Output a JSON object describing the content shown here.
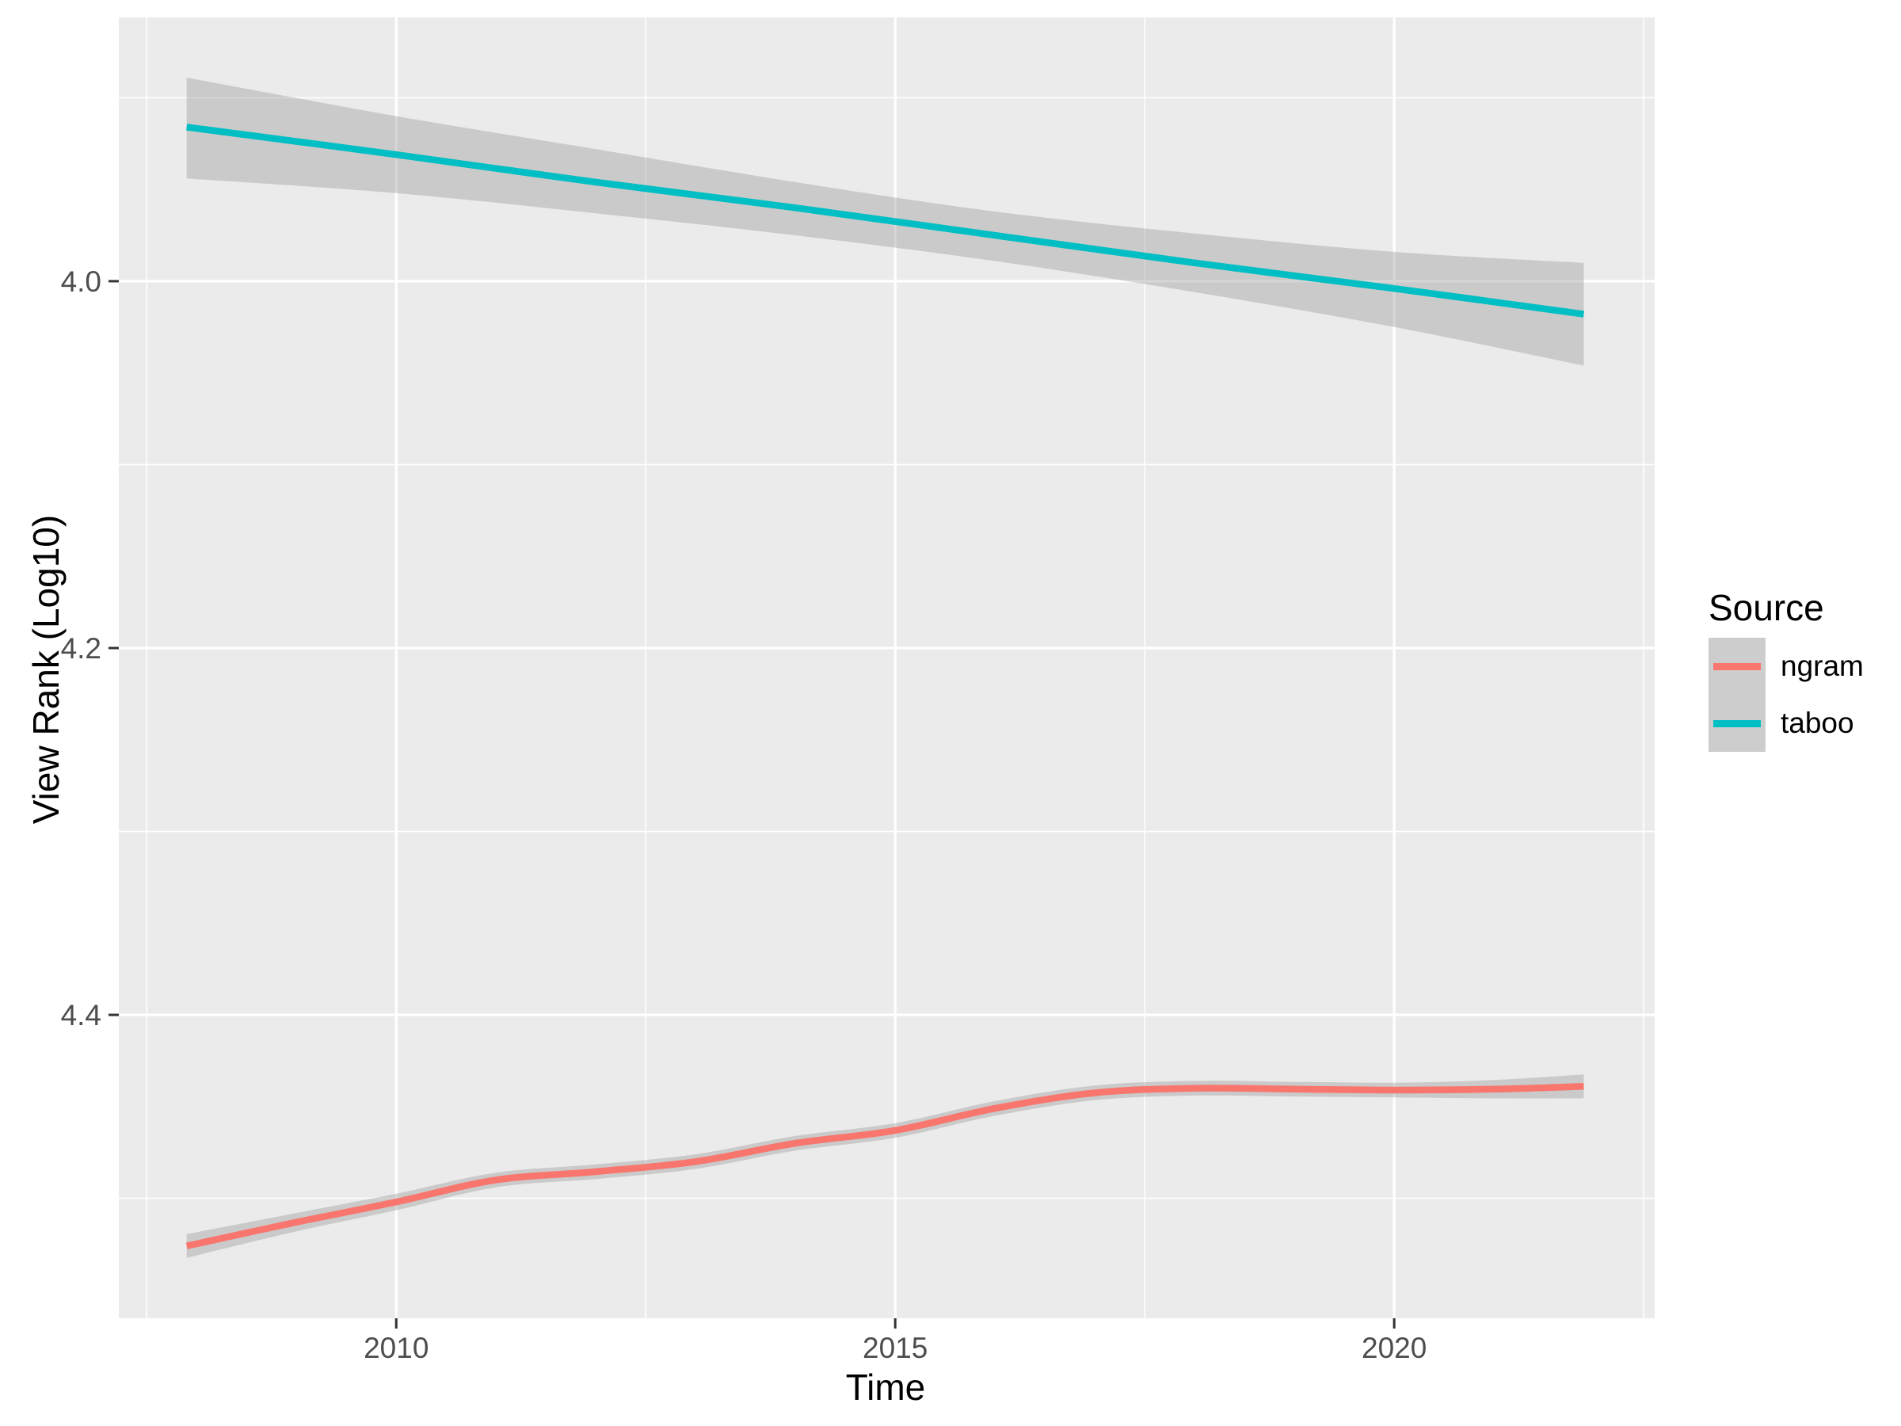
{
  "figure": {
    "background": "#ffffff",
    "panel_background": "#ebebeb",
    "grid_color": "#ffffff",
    "tick_mark_color": "#333333",
    "tick_label_color": "#4d4d4d",
    "axis_title_color": "#000000",
    "ribbon_color": "rgba(153,153,153,0.4)"
  },
  "chart_data": {
    "type": "line",
    "title": "",
    "xlabel": "Time",
    "ylabel": "View Rank (Log10)",
    "grid": true,
    "legend_position": "right",
    "y_axis_reversed": true,
    "xlim": [
      2007.22,
      2022.61
    ],
    "ylim_top_to_bottom": [
      3.8562,
      4.5654
    ],
    "x_ticks": [
      2010,
      2015,
      2020
    ],
    "x_tick_labels": [
      "2010",
      "2015",
      "2020"
    ],
    "x_minor_ticks": [
      2007.5,
      2012.5,
      2017.5,
      2022.5
    ],
    "y_ticks": [
      4.0,
      4.2,
      4.4
    ],
    "y_tick_labels": [
      "4.0",
      "4.2",
      "4.4"
    ],
    "y_minor_ticks": [
      3.9,
      4.1,
      4.3,
      4.5
    ],
    "legend": {
      "title": "Source",
      "entries": [
        {
          "label": "ngram",
          "color": "#F8766D"
        },
        {
          "label": "taboo",
          "color": "#00BFC4"
        }
      ]
    },
    "series": [
      {
        "name": "ngram",
        "color": "#F8766D",
        "x": [
          2007.9,
          2009,
          2010,
          2011,
          2012,
          2013,
          2014,
          2015,
          2016,
          2017,
          2018,
          2019,
          2020,
          2021,
          2021.9
        ],
        "y": [
          4.526,
          4.513,
          4.502,
          4.49,
          4.4855,
          4.48,
          4.47,
          4.463,
          4.451,
          4.4425,
          4.44,
          4.4405,
          4.441,
          4.4405,
          4.439
        ],
        "ci_lo": [
          4.5195,
          4.508,
          4.4975,
          4.486,
          4.4815,
          4.476,
          4.466,
          4.459,
          4.447,
          4.4385,
          4.436,
          4.4365,
          4.437,
          4.4355,
          4.4325
        ],
        "ci_hi": [
          4.5325,
          4.518,
          4.5065,
          4.494,
          4.4895,
          4.484,
          4.474,
          4.467,
          4.455,
          4.4465,
          4.444,
          4.4445,
          4.445,
          4.4455,
          4.4455
        ]
      },
      {
        "name": "taboo",
        "color": "#00BFC4",
        "x": [
          2007.9,
          2010,
          2012,
          2014,
          2016,
          2018,
          2020,
          2021.9
        ],
        "y": [
          3.916,
          3.931,
          3.946,
          3.96,
          3.975,
          3.99,
          4.004,
          4.018
        ],
        "ci_lo": [
          3.889,
          3.91,
          3.928,
          3.946,
          3.962,
          3.974,
          3.984,
          3.99
        ],
        "ci_hi": [
          3.944,
          3.952,
          3.963,
          3.975,
          3.989,
          4.006,
          4.025,
          4.046
        ]
      }
    ]
  }
}
